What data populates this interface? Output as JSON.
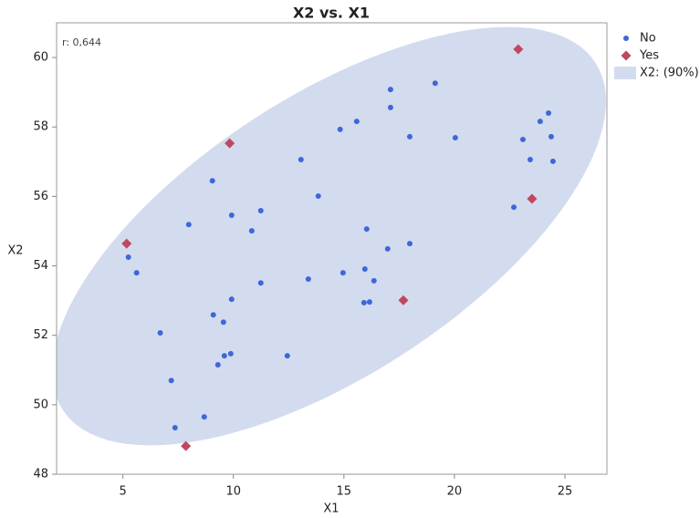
{
  "chart_data": {
    "type": "scatter",
    "title": "X2 vs. X1",
    "x_label": "X1",
    "y_label": "X2",
    "annotation": "r: 0,644",
    "xlim": [
      2,
      26.9
    ],
    "ylim": [
      48,
      61
    ],
    "xticks": [
      5,
      10,
      15,
      20,
      25
    ],
    "yticks": [
      48,
      50,
      52,
      54,
      56,
      58,
      60
    ],
    "series": [
      {
        "name": "No",
        "color": "#3f67d8",
        "marker": "circle",
        "x": [
          5.25,
          5.62,
          6.69,
          7.19,
          7.36,
          7.98,
          8.68,
          9.05,
          9.09,
          9.3,
          9.55,
          9.59,
          9.88,
          9.92,
          9.92,
          10.83,
          11.24,
          11.24,
          12.44,
          13.06,
          13.39,
          13.84,
          14.83,
          14.96,
          15.58,
          15.91,
          15.95,
          16.03,
          16.16,
          16.36,
          16.98,
          17.11,
          17.11,
          17.98,
          17.98,
          19.13,
          20.04,
          22.69,
          23.1,
          23.43,
          23.88,
          24.26,
          24.38,
          24.46
        ],
        "values": [
          54.25,
          53.8,
          52.07,
          50.7,
          49.34,
          55.19,
          49.65,
          56.45,
          52.59,
          51.15,
          52.38,
          51.41,
          51.47,
          55.46,
          53.04,
          55.01,
          55.59,
          53.51,
          51.41,
          57.06,
          53.62,
          56.01,
          57.93,
          53.8,
          58.16,
          52.94,
          53.91,
          55.06,
          52.96,
          53.57,
          54.49,
          59.08,
          58.56,
          57.72,
          54.64,
          59.26,
          57.69,
          55.69,
          57.64,
          57.06,
          58.16,
          58.4,
          57.72,
          57.01
        ]
      },
      {
        "name": "Yes",
        "color": "#c0475f",
        "marker": "diamond",
        "x": [
          5.17,
          7.85,
          9.83,
          17.69,
          22.89,
          23.51
        ],
        "values": [
          54.64,
          48.81,
          57.53,
          53.01,
          60.24,
          55.93
        ]
      }
    ],
    "ellipse": {
      "name": "X2: (90%)",
      "level": 90,
      "color": "#d3dbef"
    },
    "legend": "outside-right"
  }
}
